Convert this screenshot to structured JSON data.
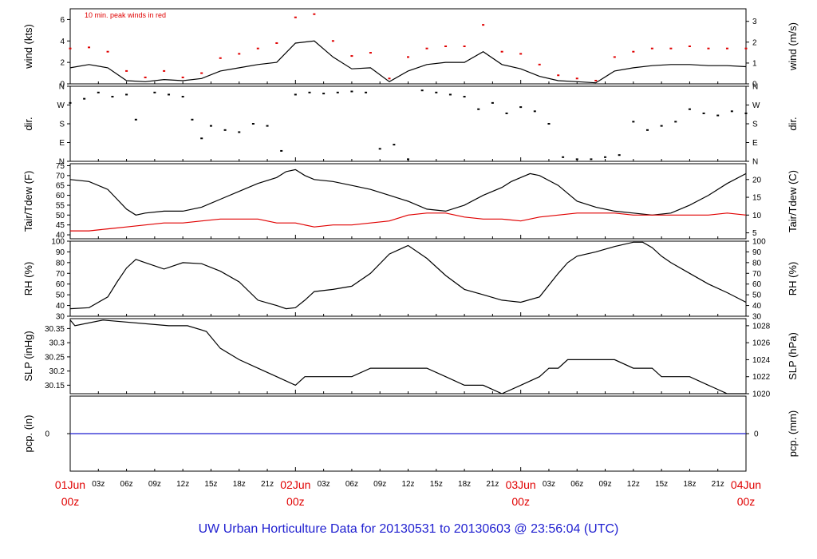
{
  "footer": "UW Urban Horticulture Data for 20130531  to  20130603 @ 23:56:04  (UTC)",
  "annotation": "10 min. peak winds in red",
  "colors": {
    "red": "#e00000",
    "blue": "#1f1fd0",
    "black": "#000000"
  },
  "chart_data": [
    {
      "id": "wind",
      "type": "line",
      "ylabel_left": "wind (kts)",
      "ylabel_right": "wind (m/s)",
      "ylim": [
        0,
        7
      ],
      "yticks_left": [
        0,
        2,
        4,
        6
      ],
      "yticks_right_labels": [
        "0",
        "1",
        "2",
        "3"
      ],
      "yticks_right_values": [
        0,
        1.94,
        3.89,
        5.83
      ],
      "series": [
        {
          "name": "10 min. peak winds in red",
          "color": "#e00000",
          "style": "points",
          "x": [
            0,
            2,
            4,
            6,
            8,
            10,
            12,
            14,
            16,
            18,
            20,
            22,
            24,
            26,
            28,
            30,
            32,
            34,
            36,
            38,
            40,
            42,
            44,
            46,
            48,
            50,
            52,
            54,
            56,
            58,
            60,
            62,
            64,
            66,
            68,
            70,
            72
          ],
          "y": [
            3.3,
            3.4,
            3.0,
            1.2,
            0.6,
            1.2,
            0.6,
            1.0,
            2.4,
            2.8,
            3.3,
            3.8,
            6.2,
            6.5,
            4.0,
            2.6,
            2.9,
            0.5,
            2.5,
            3.3,
            3.5,
            3.5,
            5.5,
            3.0,
            2.8,
            1.8,
            0.8,
            0.5,
            0.3,
            2.5,
            3.0,
            3.3,
            3.3,
            3.5,
            3.3,
            3.3,
            3.3
          ]
        },
        {
          "name": "wind",
          "color": "#000000",
          "style": "line",
          "x": [
            0,
            2,
            4,
            6,
            8,
            10,
            12,
            14,
            16,
            18,
            20,
            22,
            24,
            26,
            28,
            30,
            32,
            34,
            36,
            38,
            40,
            42,
            44,
            46,
            48,
            50,
            52,
            54,
            56,
            58,
            60,
            62,
            64,
            66,
            68,
            70,
            72
          ],
          "y": [
            1.5,
            1.8,
            1.5,
            0.3,
            0.2,
            0.4,
            0.3,
            0.5,
            1.2,
            1.5,
            1.8,
            2.0,
            3.8,
            4.0,
            2.5,
            1.4,
            1.5,
            0.2,
            1.2,
            1.8,
            2.0,
            2.0,
            3.0,
            1.8,
            1.4,
            0.7,
            0.3,
            0.2,
            0.1,
            1.2,
            1.5,
            1.7,
            1.8,
            1.8,
            1.7,
            1.7,
            1.6
          ]
        }
      ]
    },
    {
      "id": "dir",
      "type": "scatter",
      "ylabel_left": "dir.",
      "ylabel_right": "dir.",
      "ylim": [
        0,
        360
      ],
      "yticks_values": [
        0,
        90,
        180,
        270,
        360
      ],
      "yticks_labels": [
        "N",
        "E",
        "S",
        "W",
        "N"
      ],
      "series": [
        {
          "name": "wind direction",
          "color": "#000000",
          "x": [
            0,
            1.5,
            3,
            4.5,
            6,
            7,
            9,
            10.5,
            12,
            13,
            14,
            15,
            16.5,
            18,
            19.5,
            21,
            22.5,
            24,
            25.5,
            27,
            28.5,
            30,
            31.5,
            33,
            34.5,
            36,
            37.5,
            39,
            40.5,
            42,
            43.5,
            45,
            46.5,
            48,
            49.5,
            51,
            52.5,
            54,
            55.5,
            57,
            58.5,
            60,
            61.5,
            63,
            64.5,
            66,
            67.5,
            69,
            70.5,
            72
          ],
          "y": [
            280,
            300,
            330,
            310,
            320,
            200,
            330,
            320,
            310,
            200,
            110,
            170,
            150,
            140,
            180,
            170,
            50,
            320,
            330,
            325,
            330,
            335,
            330,
            60,
            80,
            10,
            340,
            330,
            320,
            310,
            250,
            280,
            230,
            260,
            240,
            180,
            20,
            10,
            10,
            20,
            30,
            190,
            150,
            170,
            190,
            250,
            230,
            220,
            240,
            230
          ]
        }
      ]
    },
    {
      "id": "temp",
      "type": "line",
      "ylabel_left": "Tair/Tdew (F)",
      "ylabel_right": "Tair/Tdew (C)",
      "ylim": [
        38,
        76
      ],
      "yticks_left": [
        40,
        45,
        50,
        55,
        60,
        65,
        70,
        75
      ],
      "yticks_right_labels": [
        "5",
        "10",
        "15",
        "20"
      ],
      "yticks_right_values": [
        41,
        50,
        59,
        68
      ],
      "series": [
        {
          "name": "Tair",
          "color": "#000000",
          "x": [
            0,
            2,
            4,
            5,
            6,
            7,
            8,
            10,
            12,
            14,
            16,
            18,
            20,
            22,
            23,
            24,
            25,
            26,
            28,
            30,
            32,
            34,
            36,
            38,
            40,
            42,
            44,
            46,
            47,
            48,
            49,
            50,
            52,
            54,
            56,
            58,
            60,
            62,
            64,
            66,
            68,
            70,
            72
          ],
          "y": [
            68,
            67,
            63,
            58,
            53,
            50,
            51,
            52,
            52,
            54,
            58,
            62,
            66,
            69,
            72,
            73,
            70,
            68,
            67,
            65,
            63,
            60,
            57,
            53,
            52,
            55,
            60,
            64,
            67,
            69,
            71,
            70,
            65,
            57,
            54,
            52,
            51,
            50,
            51,
            55,
            60,
            66,
            71
          ]
        },
        {
          "name": "Tdew",
          "color": "#e00000",
          "x": [
            0,
            2,
            4,
            6,
            8,
            10,
            12,
            14,
            16,
            18,
            20,
            22,
            24,
            26,
            28,
            30,
            32,
            34,
            36,
            38,
            40,
            42,
            44,
            46,
            48,
            50,
            52,
            54,
            56,
            58,
            60,
            62,
            64,
            66,
            68,
            70,
            72
          ],
          "y": [
            42,
            42,
            43,
            44,
            45,
            46,
            46,
            47,
            48,
            48,
            48,
            46,
            46,
            44,
            45,
            45,
            46,
            47,
            50,
            51,
            51,
            49,
            48,
            48,
            47,
            49,
            50,
            51,
            51,
            51,
            50,
            50,
            50,
            50,
            50,
            51,
            50
          ]
        }
      ]
    },
    {
      "id": "rh",
      "type": "line",
      "ylabel_left": "RH (%)",
      "ylabel_right": "RH (%)",
      "ylim": [
        30,
        100
      ],
      "yticks_left": [
        30,
        40,
        50,
        60,
        70,
        80,
        90,
        100
      ],
      "series": [
        {
          "name": "RH",
          "color": "#000000",
          "x": [
            0,
            2,
            4,
            5,
            6,
            7,
            8,
            10,
            12,
            14,
            16,
            18,
            20,
            22,
            23,
            24,
            25,
            26,
            28,
            30,
            32,
            34,
            36,
            38,
            40,
            42,
            44,
            46,
            48,
            50,
            52,
            53,
            54,
            56,
            58,
            60,
            61,
            62,
            63,
            64,
            66,
            68,
            70,
            72
          ],
          "y": [
            37,
            38,
            48,
            62,
            75,
            83,
            80,
            74,
            80,
            79,
            72,
            62,
            45,
            40,
            37,
            38,
            45,
            53,
            55,
            58,
            70,
            88,
            96,
            84,
            68,
            55,
            50,
            45,
            43,
            48,
            70,
            80,
            86,
            90,
            95,
            99,
            99,
            94,
            86,
            80,
            70,
            60,
            52,
            43
          ]
        }
      ]
    },
    {
      "id": "slp",
      "type": "line",
      "ylabel_left": "SLP (inHg)",
      "ylabel_right": "SLP (hPa)",
      "ylim": [
        30.12,
        30.385
      ],
      "yticks_left": [
        30.15,
        30.2,
        30.25,
        30.3,
        30.35
      ],
      "yticks_right_labels": [
        "1020",
        "1022",
        "1024",
        "1026",
        "1028"
      ],
      "yticks_right_values": [
        30.12,
        30.18,
        30.24,
        30.3,
        30.36
      ],
      "series": [
        {
          "name": "SLP",
          "color": "#000000",
          "x": [
            0,
            0.5,
            3.5,
            10.5,
            12.5,
            14.5,
            15,
            16,
            18,
            20,
            22,
            24,
            25,
            26,
            28,
            30,
            32,
            34,
            36,
            38,
            40,
            42,
            44,
            46,
            48,
            50,
            51,
            52,
            53,
            56,
            58,
            60,
            61,
            62,
            63,
            64,
            66,
            68,
            70,
            72
          ],
          "y": [
            30.38,
            30.36,
            30.38,
            30.36,
            30.36,
            30.34,
            30.32,
            30.28,
            30.24,
            30.21,
            30.18,
            30.15,
            30.18,
            30.18,
            30.18,
            30.18,
            30.21,
            30.21,
            30.21,
            30.21,
            30.18,
            30.15,
            30.15,
            30.12,
            30.15,
            30.18,
            30.21,
            30.21,
            30.24,
            30.24,
            30.24,
            30.21,
            30.21,
            30.21,
            30.18,
            30.18,
            30.18,
            30.15,
            30.12,
            30.12
          ]
        }
      ]
    },
    {
      "id": "pcp",
      "type": "line",
      "ylabel_left": "pcp. (in)",
      "ylabel_right": "pcp. (mm)",
      "ylim": [
        -1,
        1
      ],
      "yticks_left_labels": [
        "0"
      ],
      "yticks_right_labels": [
        "0"
      ],
      "series": [
        {
          "name": "pcp",
          "color": "#1f1fd0",
          "x": [
            0,
            72
          ],
          "y": [
            0,
            0
          ]
        }
      ]
    }
  ],
  "xaxis": {
    "range_hours": [
      0,
      72
    ],
    "hour_labels": [
      {
        "h": 3,
        "t": "03z"
      },
      {
        "h": 6,
        "t": "06z"
      },
      {
        "h": 9,
        "t": "09z"
      },
      {
        "h": 12,
        "t": "12z"
      },
      {
        "h": 15,
        "t": "15z"
      },
      {
        "h": 18,
        "t": "18z"
      },
      {
        "h": 21,
        "t": "21z"
      },
      {
        "h": 27,
        "t": "03z"
      },
      {
        "h": 30,
        "t": "06z"
      },
      {
        "h": 33,
        "t": "09z"
      },
      {
        "h": 36,
        "t": "12z"
      },
      {
        "h": 39,
        "t": "15z"
      },
      {
        "h": 42,
        "t": "18z"
      },
      {
        "h": 45,
        "t": "21z"
      },
      {
        "h": 51,
        "t": "03z"
      },
      {
        "h": 54,
        "t": "06z"
      },
      {
        "h": 57,
        "t": "09z"
      },
      {
        "h": 60,
        "t": "12z"
      },
      {
        "h": 63,
        "t": "15z"
      },
      {
        "h": 66,
        "t": "18z"
      },
      {
        "h": 69,
        "t": "21z"
      }
    ],
    "day_labels": [
      {
        "h": 0,
        "date": "01Jun",
        "time": "00z"
      },
      {
        "h": 24,
        "date": "02Jun",
        "time": "00z"
      },
      {
        "h": 48,
        "date": "03Jun",
        "time": "00z"
      },
      {
        "h": 72,
        "date": "04Jun",
        "time": "00z"
      }
    ]
  }
}
